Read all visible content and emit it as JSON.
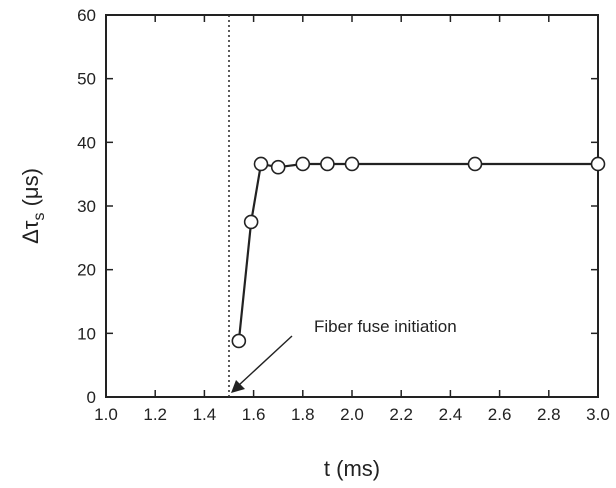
{
  "chart_data": {
    "type": "line",
    "xlabel": "t (ms)",
    "ylabel": {
      "main": "Δτ",
      "sub": "s",
      "unit": "(μs)"
    },
    "xlim": [
      1.0,
      3.0
    ],
    "ylim": [
      0,
      60
    ],
    "xticks": [
      "1.0",
      "1.2",
      "1.4",
      "1.6",
      "1.8",
      "2.0",
      "2.2",
      "2.4",
      "2.6",
      "2.8",
      "3.0"
    ],
    "yticks": [
      "0",
      "10",
      "20",
      "30",
      "40",
      "50",
      "60"
    ],
    "grid": false,
    "marker": "open-circle",
    "series": [
      {
        "x": [
          1.54,
          1.59,
          1.63,
          1.7,
          1.8,
          1.9,
          2.0,
          2.5,
          3.0
        ],
        "y": [
          8.8,
          27.5,
          36.6,
          36.1,
          36.6,
          36.6,
          36.6,
          36.6,
          36.6
        ]
      }
    ],
    "vline": {
      "x": 1.5,
      "style": "dotted"
    },
    "annotations": [
      {
        "text": "Fiber fuse initiation",
        "x": 1.5,
        "y": 0
      }
    ]
  }
}
